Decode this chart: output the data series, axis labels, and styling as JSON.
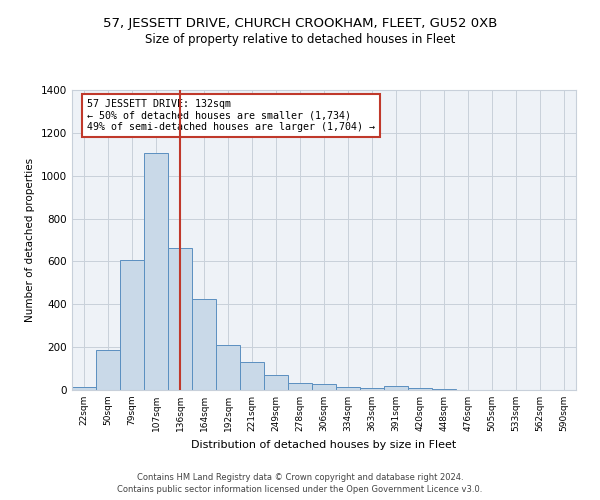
{
  "title": "57, JESSETT DRIVE, CHURCH CROOKHAM, FLEET, GU52 0XB",
  "subtitle": "Size of property relative to detached houses in Fleet",
  "xlabel": "Distribution of detached houses by size in Fleet",
  "ylabel": "Number of detached properties",
  "categories": [
    "22sqm",
    "50sqm",
    "79sqm",
    "107sqm",
    "136sqm",
    "164sqm",
    "192sqm",
    "221sqm",
    "249sqm",
    "278sqm",
    "306sqm",
    "334sqm",
    "363sqm",
    "391sqm",
    "420sqm",
    "448sqm",
    "476sqm",
    "505sqm",
    "533sqm",
    "562sqm",
    "590sqm"
  ],
  "values": [
    15,
    185,
    605,
    1105,
    665,
    425,
    210,
    130,
    70,
    35,
    28,
    12,
    10,
    20,
    8,
    5,
    0,
    0,
    0,
    0,
    0
  ],
  "bar_color": "#c9d9e8",
  "bar_edge_color": "#5a8fc0",
  "vline_x": 4.0,
  "vline_color": "#c0392b",
  "annotation_text": "57 JESSETT DRIVE: 132sqm\n← 50% of detached houses are smaller (1,734)\n49% of semi-detached houses are larger (1,704) →",
  "annotation_box_color": "#ffffff",
  "annotation_box_edge": "#c0392b",
  "background_color": "#eef2f7",
  "grid_color": "#c8d0da",
  "footer_line1": "Contains HM Land Registry data © Crown copyright and database right 2024.",
  "footer_line2": "Contains public sector information licensed under the Open Government Licence v3.0.",
  "title_fontsize": 9.5,
  "subtitle_fontsize": 8.5,
  "ylim": [
    0,
    1400
  ]
}
